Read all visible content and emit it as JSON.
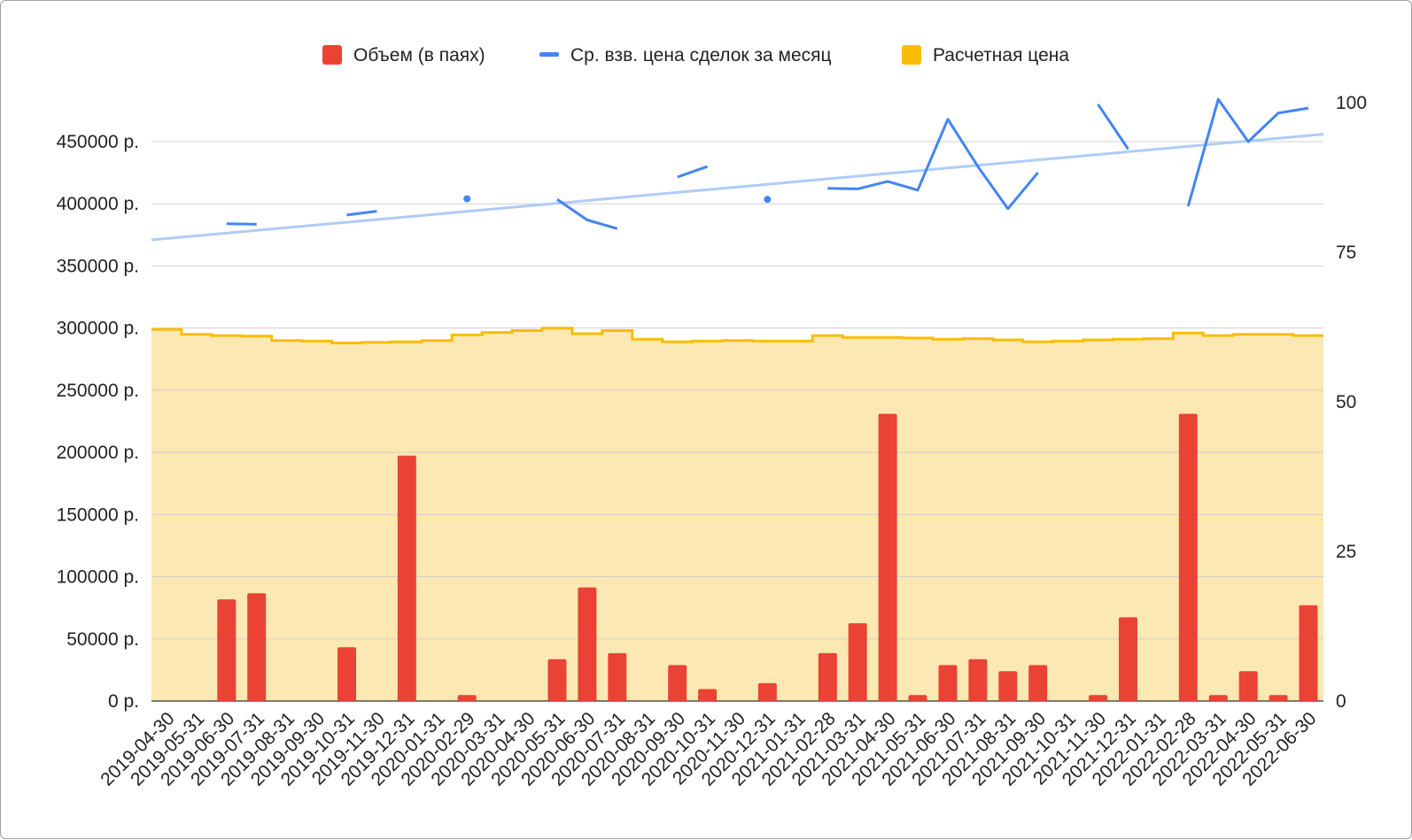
{
  "chart_data": {
    "type": "bar",
    "title": "",
    "legend": [
      {
        "label": "Объем (в паях)",
        "color": "#ea4335",
        "kind": "bar"
      },
      {
        "label": "Ср. взв. цена сделок за месяц",
        "color": "#4285f4",
        "kind": "line"
      },
      {
        "label": "Расчетная цена",
        "color": "#fbbc04",
        "kind": "area"
      }
    ],
    "legend_position": "top",
    "grid": true,
    "left_axis": {
      "ticks": [
        0,
        50000,
        100000,
        150000,
        200000,
        250000,
        300000,
        350000,
        400000,
        450000
      ],
      "tick_labels": [
        "0 р.",
        "50000 р.",
        "100000 р.",
        "150000 р.",
        "200000 р.",
        "250000 р.",
        "300000 р.",
        "350000 р.",
        "400000 р.",
        "450000 р."
      ],
      "ylim": [
        0,
        450000
      ]
    },
    "right_axis": {
      "ticks": [
        0,
        25,
        50,
        75,
        100
      ],
      "tick_labels": [
        "0",
        "25",
        "50",
        "75",
        "100"
      ],
      "ylim": [
        0,
        100
      ]
    },
    "categories": [
      "2019-04-30",
      "2019-05-31",
      "2019-06-30",
      "2019-07-31",
      "2019-08-31",
      "2019-09-30",
      "2019-10-31",
      "2019-11-30",
      "2019-12-31",
      "2020-01-31",
      "2020-02-29",
      "2020-03-31",
      "2020-04-30",
      "2020-05-31",
      "2020-06-30",
      "2020-07-31",
      "2020-08-31",
      "2020-09-30",
      "2020-10-31",
      "2020-11-30",
      "2020-12-31",
      "2021-01-31",
      "2021-02-28",
      "2021-03-31",
      "2021-04-30",
      "2021-05-31",
      "2021-06-30",
      "2021-07-31",
      "2021-08-31",
      "2021-09-30",
      "2021-10-31",
      "2021-11-30",
      "2021-12-31",
      "2022-01-31",
      "2022-02-28",
      "2022-03-31",
      "2022-04-30",
      "2022-05-31",
      "2022-06-30"
    ],
    "series": [
      {
        "name": "Объем (в паях)",
        "type": "bar",
        "axis": "right",
        "color": "#ea4335",
        "values": [
          0,
          0,
          17,
          18,
          0,
          0,
          9,
          0,
          41,
          0,
          1,
          0,
          0,
          7,
          19,
          8,
          0,
          6,
          2,
          0,
          3,
          0,
          8,
          13,
          48,
          1,
          6,
          7,
          5,
          6,
          0,
          1,
          14,
          0,
          48,
          1,
          5,
          1,
          16
        ]
      },
      {
        "name": "Ср. взв. цена сделок за месяц",
        "type": "line",
        "axis": "left",
        "color": "#4285f4",
        "values": [
          null,
          null,
          384000,
          383500,
          null,
          null,
          391000,
          394000,
          null,
          null,
          404000,
          null,
          null,
          403500,
          387000,
          380000,
          null,
          421500,
          430000,
          null,
          403500,
          null,
          412500,
          412000,
          418000,
          411000,
          468000,
          430000,
          396000,
          425000,
          null,
          480000,
          444000,
          null,
          398000,
          484000,
          450000,
          473000,
          477000
        ]
      },
      {
        "name": "Расчетная цена",
        "type": "step-area",
        "axis": "left",
        "color": "#fbbc04",
        "fill": "#fce8b2",
        "values": [
          299000,
          295000,
          294000,
          293500,
          290000,
          289500,
          288000,
          288500,
          289000,
          290000,
          294500,
          296500,
          298000,
          300000,
          295500,
          298000,
          291000,
          289000,
          289500,
          290000,
          289500,
          289500,
          294000,
          292500,
          292500,
          292000,
          291000,
          291500,
          290500,
          289000,
          289500,
          290500,
          291000,
          291500,
          296000,
          294000,
          295000,
          295000,
          294000
        ]
      }
    ],
    "trendline": {
      "series": "Ср. взв. цена сделок за месяц",
      "color": "#aecbfa",
      "start": 371000,
      "end": 456000
    }
  }
}
